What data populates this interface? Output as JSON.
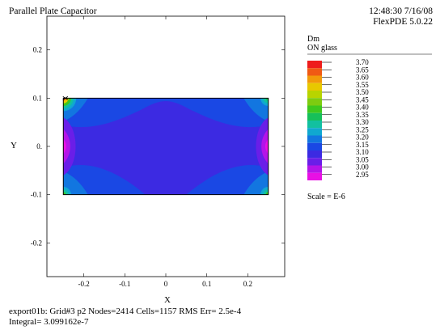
{
  "header": {
    "title": "Parallel Plate Capacitor",
    "time": "12:48:30 7/16/08",
    "version": "FlexPDE 5.0.22"
  },
  "footer": {
    "line1": "export01b:  Grid#3  p2  Nodes=2414 Cells=1157 RMS Err= 2.5e-4",
    "line2": "Integral=  3.099162e-7"
  },
  "legend": {
    "variable": "Dm",
    "region": "ON glass",
    "scale": "Scale = E-6",
    "levels": [
      "3.70",
      "3.65",
      "3.60",
      "3.55",
      "3.50",
      "3.45",
      "3.40",
      "3.35",
      "3.30",
      "3.25",
      "3.20",
      "3.15",
      "3.10",
      "3.05",
      "3.00",
      "2.95"
    ],
    "colors": [
      "#ee1c1c",
      "#f05a14",
      "#f29a0a",
      "#e8c800",
      "#b8d400",
      "#7ecc10",
      "#3ec81e",
      "#16c05a",
      "#12c0a0",
      "#10a8d0",
      "#1276e0",
      "#1a48e4",
      "#3c2ae2",
      "#6a1ee8",
      "#b414e8",
      "#e810e4"
    ]
  },
  "chart_data": {
    "type": "heatmap",
    "title": "Parallel Plate Capacitor",
    "xlabel": "X",
    "ylabel": "Y",
    "xlim": [
      -0.29,
      0.29
    ],
    "ylim": [
      -0.27,
      0.27
    ],
    "xticks": [
      -0.2,
      -0.1,
      0,
      0.1,
      0.2
    ],
    "yticks": [
      -0.2,
      -0.1,
      0,
      0.1,
      0.2
    ],
    "xtick_labels": [
      "-0.2",
      "-0.1",
      "0",
      "0.1",
      "0.2"
    ],
    "ytick_labels": [
      "-0.2",
      "-0.1",
      "0.",
      "0.1",
      "0.2"
    ],
    "region": {
      "x": [
        -0.25,
        0.25
      ],
      "y": [
        -0.1,
        0.1
      ]
    },
    "marker": {
      "x": -0.245,
      "y": 0.1
    }
  }
}
